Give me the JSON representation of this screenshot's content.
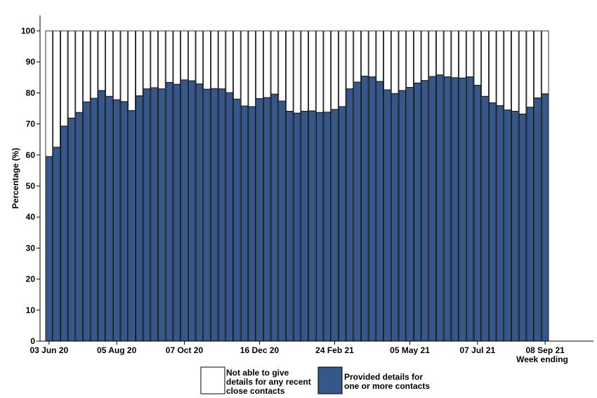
{
  "chart_data": {
    "type": "bar",
    "stacked": true,
    "ylabel": "Percentage (%)",
    "xlabel": "Week ending",
    "ylim": [
      0,
      100
    ],
    "yticks": [
      0,
      10,
      20,
      30,
      40,
      50,
      60,
      70,
      80,
      90,
      100
    ],
    "xtick_labels": [
      {
        "label": "03 Jun 20",
        "index": 0
      },
      {
        "label": "05 Aug 20",
        "index": 9
      },
      {
        "label": "07 Oct 20",
        "index": 18
      },
      {
        "label": "16 Dec 20",
        "index": 28
      },
      {
        "label": "24 Feb 21",
        "index": 38
      },
      {
        "label": "05 May 21",
        "index": 48
      },
      {
        "label": "07 Jul 21",
        "index": 57
      },
      {
        "label": "08 Sep 21",
        "index": 66
      }
    ],
    "series": [
      {
        "name": "Provided details for one or more contacts",
        "legend_lines": [
          "Provided details for",
          " one or more contacts"
        ],
        "color": "#36578a",
        "values": [
          59.5,
          62.5,
          69.3,
          71.9,
          73.7,
          77.1,
          78.3,
          80.8,
          78.9,
          77.8,
          77.2,
          74.3,
          79.1,
          81.3,
          81.7,
          81.3,
          83.4,
          82.8,
          84.2,
          83.9,
          82.9,
          81.2,
          81.4,
          81.3,
          80.1,
          78.0,
          75.8,
          75.6,
          78.2,
          78.5,
          79.6,
          77.4,
          74.1,
          73.5,
          74.1,
          74.2,
          73.7,
          73.8,
          74.7,
          75.6,
          81.3,
          83.5,
          85.4,
          85.2,
          83.7,
          81.0,
          79.8,
          80.8,
          81.8,
          83.2,
          84.0,
          85.3,
          85.8,
          85.2,
          84.9,
          84.8,
          85.2,
          82.5,
          78.9,
          76.8,
          75.9,
          74.5,
          74.1,
          73.2,
          75.4,
          78.4,
          79.7
        ]
      },
      {
        "name": "Not able to give details for any recent close contacts",
        "legend_lines": [
          "Not able to give",
          " details for any recent",
          " close contacts"
        ],
        "color": "#ffffff",
        "remainder_to": 100
      }
    ]
  }
}
